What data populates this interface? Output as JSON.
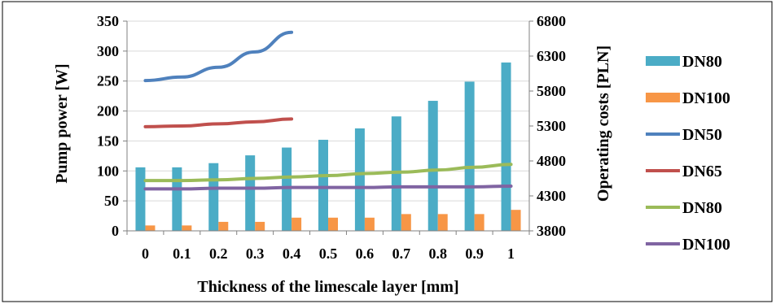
{
  "chart_data": {
    "type": "bar+line",
    "categories": [
      "0",
      "0.1",
      "0.2",
      "0.3",
      "0.4",
      "0.5",
      "0.6",
      "0.7",
      "0.8",
      "0.9",
      "1"
    ],
    "xlabel": "Thickness of the limescale layer [mm]",
    "ylabel_left": "Pump power [W]",
    "ylabel_right": "Operating costs [PLN]",
    "ylim_left": [
      0,
      350
    ],
    "yticks_left": [
      "0",
      "50",
      "100",
      "150",
      "200",
      "250",
      "300",
      "350"
    ],
    "ylim_right": [
      3800,
      6800
    ],
    "yticks_right": [
      "3800",
      "4300",
      "4800",
      "5300",
      "5800",
      "6300",
      "6800"
    ],
    "bar_series": [
      {
        "name": "DN80",
        "color": "#4BACC6",
        "axis": "left",
        "values": [
          106,
          106,
          113,
          126,
          139,
          152,
          171,
          191,
          217,
          249,
          281
        ]
      },
      {
        "name": "DN100",
        "color": "#F79646",
        "axis": "left",
        "values": [
          9,
          9,
          15,
          15,
          22,
          22,
          22,
          28,
          28,
          28,
          35
        ]
      }
    ],
    "line_series": [
      {
        "name": "DN50",
        "color": "#4F81BD",
        "axis": "right",
        "values": [
          5950,
          6000,
          6140,
          6360,
          6640,
          null,
          null,
          null,
          null,
          null,
          null
        ]
      },
      {
        "name": "DN65",
        "color": "#C0504D",
        "axis": "right",
        "values": [
          5290,
          5300,
          5330,
          5360,
          5400,
          null,
          null,
          null,
          null,
          null,
          null
        ]
      },
      {
        "name": "DN80",
        "color": "#9BBB59",
        "axis": "right",
        "values": [
          4520,
          4520,
          4530,
          4550,
          4570,
          4590,
          4620,
          4640,
          4670,
          4710,
          4750
        ]
      },
      {
        "name": "DN100",
        "color": "#8064A2",
        "axis": "right",
        "values": [
          4400,
          4400,
          4410,
          4410,
          4420,
          4420,
          4420,
          4430,
          4430,
          4430,
          4440
        ]
      }
    ],
    "legend": [
      "DN80",
      "DN100",
      "DN50",
      "DN65",
      "DN80",
      "DN100"
    ],
    "legend_position": "right",
    "grid": true
  }
}
